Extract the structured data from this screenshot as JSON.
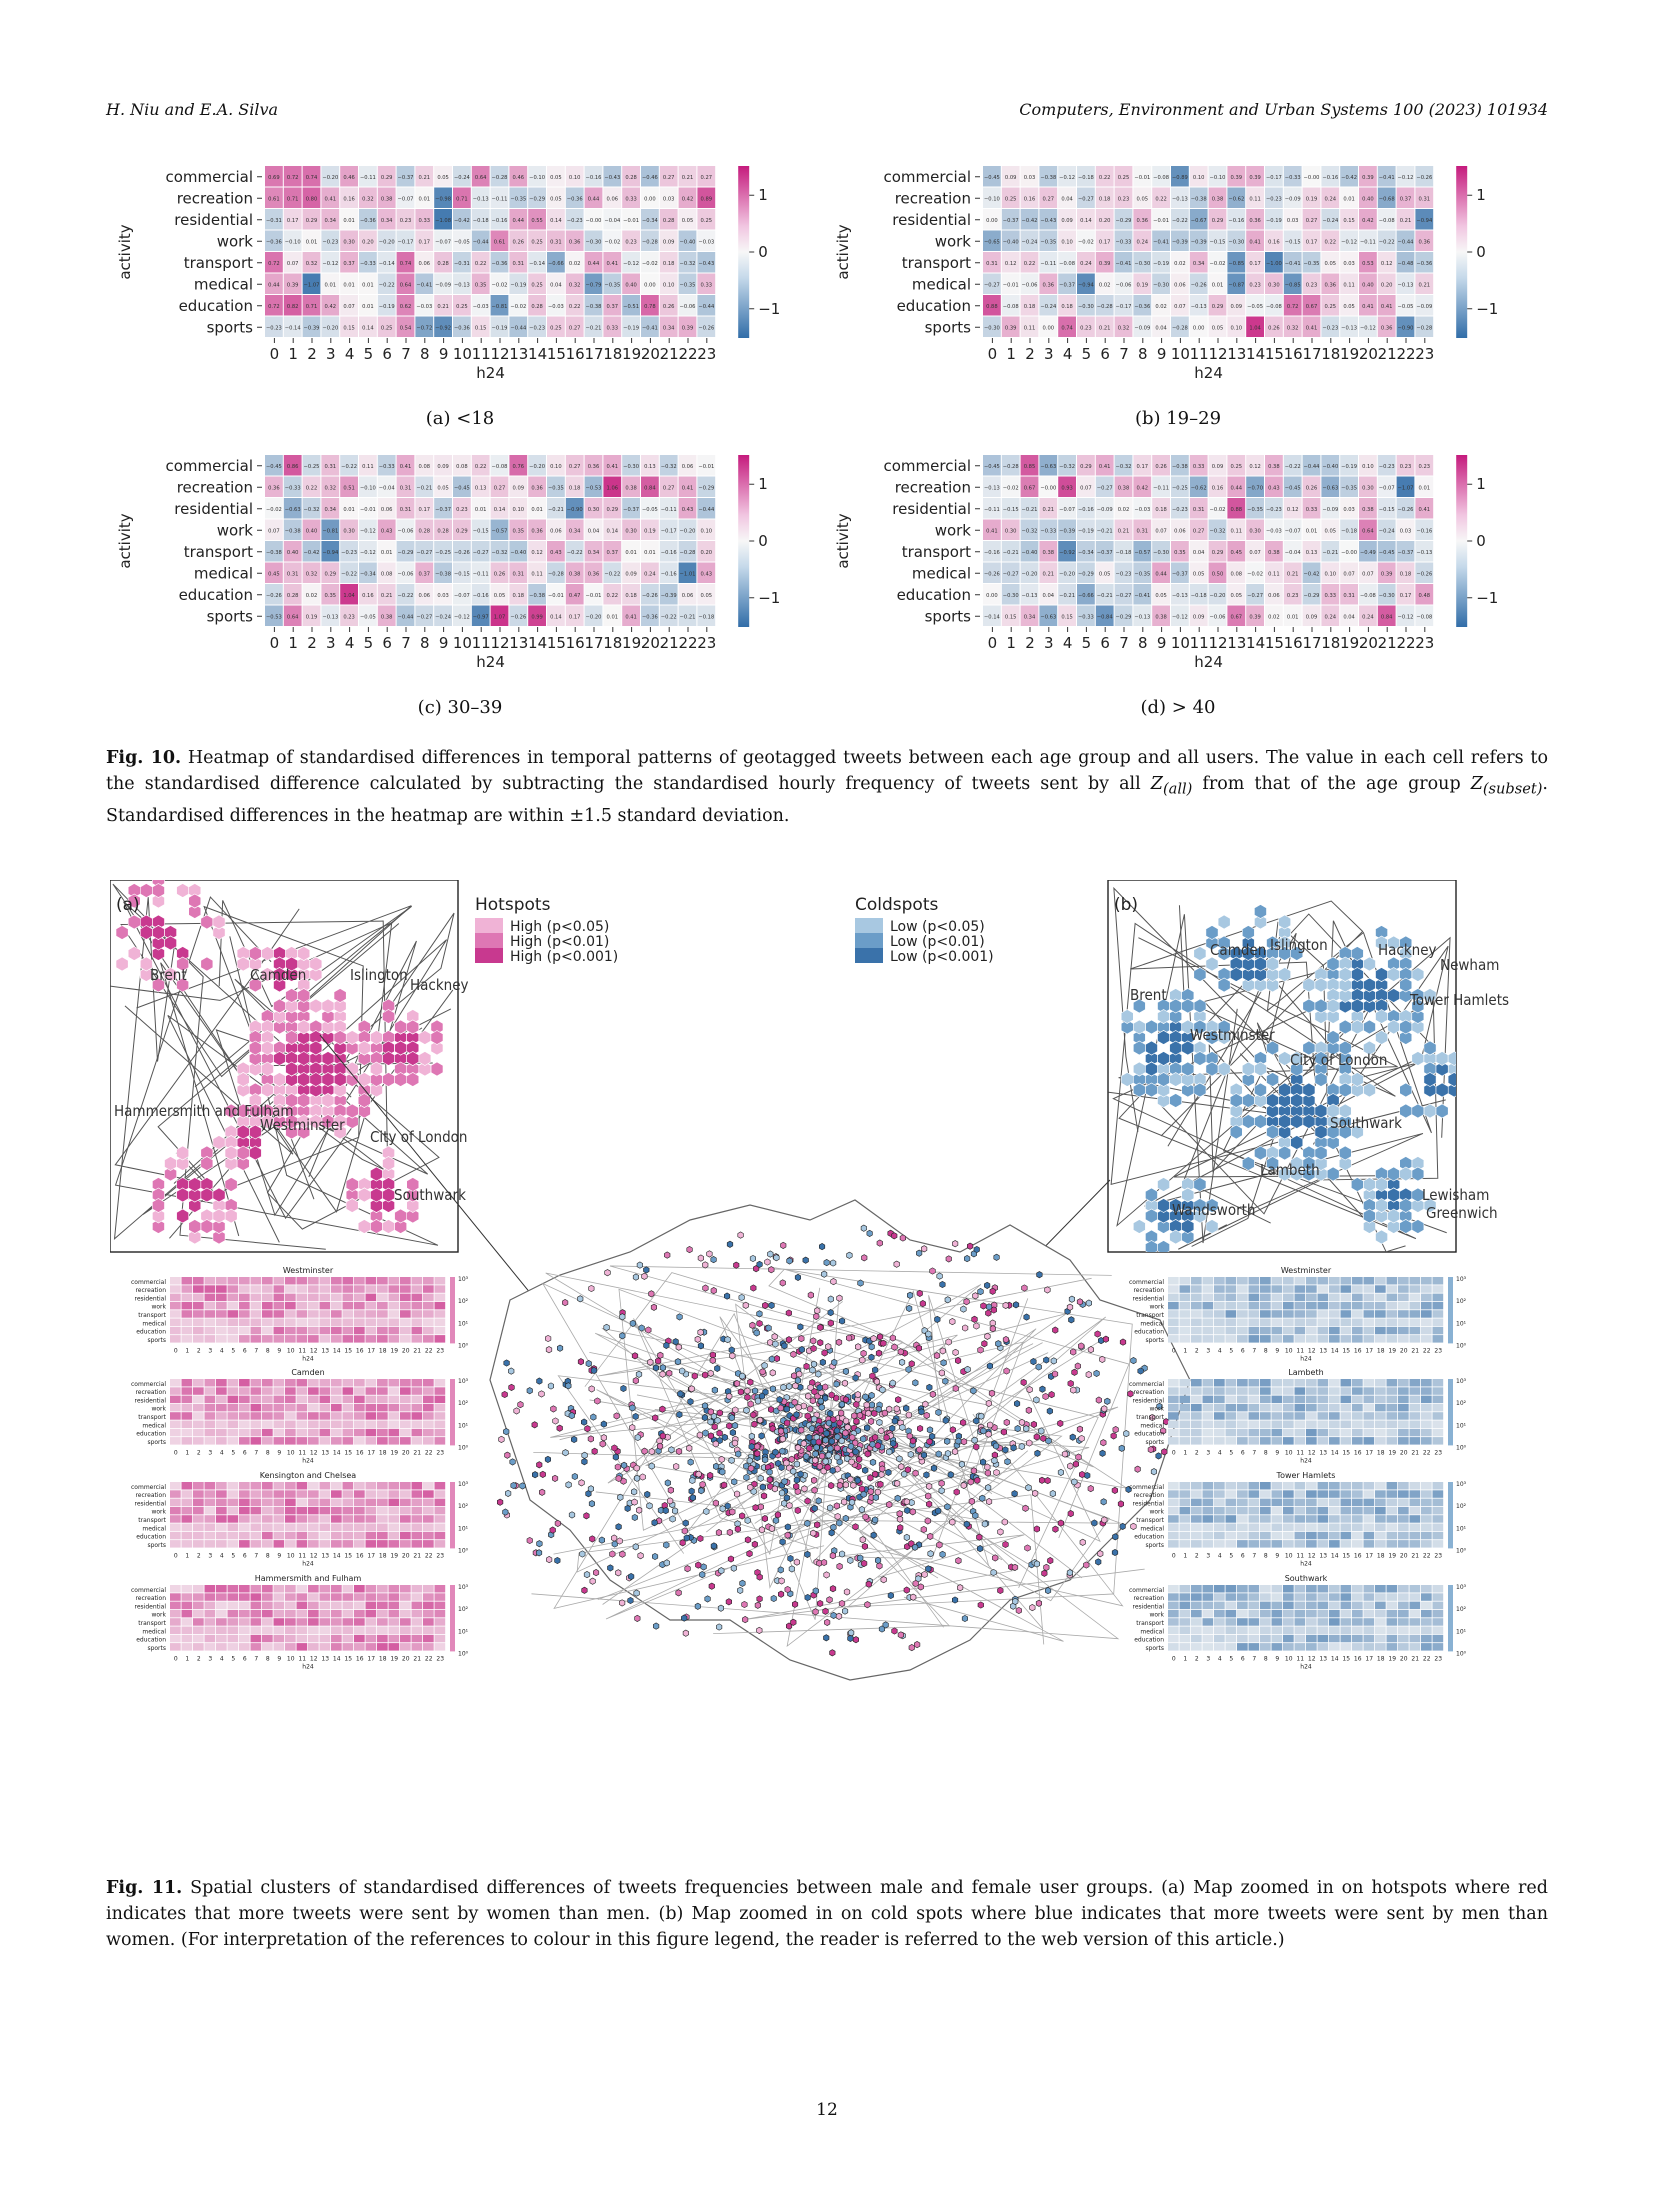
{
  "header": {
    "authors": "H. Niu and E.A. Silva",
    "journal": "Computers, Environment and Urban Systems 100 (2023) 101934"
  },
  "fig10": {
    "rows": [
      "commercial",
      "recreation",
      "residential",
      "work",
      "transport",
      "medical",
      "education",
      "sports"
    ],
    "ylabel": "activity",
    "xlabel": "h24",
    "hours": [
      "0",
      "1",
      "2",
      "3",
      "4",
      "5",
      "6",
      "7",
      "8",
      "9",
      "10",
      "11",
      "12",
      "13",
      "14",
      "15",
      "16",
      "17",
      "18",
      "19",
      "20",
      "21",
      "22",
      "23"
    ],
    "cbar_ticks": [
      "1",
      "0",
      "−1"
    ],
    "panels": [
      {
        "id": "a",
        "caption": "(a) <18"
      },
      {
        "id": "b",
        "caption": "(b) 19–29"
      },
      {
        "id": "c",
        "caption": "(c) 30–39"
      },
      {
        "id": "d",
        "caption": "(d) > 40"
      }
    ],
    "caption_label": "Fig. 10.",
    "caption_text_1": "Heatmap of standardised differences in temporal patterns of geotagged tweets between each age group and all users. The value in each cell refers to the standardised difference calculated by subtracting the standardised hourly frequency of tweets sent by all ",
    "caption_z_all": "Z",
    "caption_z_all_sub": "(all)",
    "caption_text_2": " from that of the age group ",
    "caption_z_subset": "Z",
    "caption_z_subset_sub": "(subset)",
    "caption_text_3": ". Standardised differences in the heatmap are within ±1.5 standard deviation."
  },
  "fig11": {
    "inset_a_label": "(a)",
    "inset_b_label": "(b)",
    "hotspots_title": "Hotspots",
    "hotspots_items": [
      "High (p<0.05)",
      "High (p<0.01)",
      "High (p<0.001)"
    ],
    "coldspots_title": "Coldspots",
    "coldspots_items": [
      "Low (p<0.05)",
      "Low (p<0.01)",
      "Low (p<0.001)"
    ],
    "map_a_labels": [
      "Brent",
      "Camden",
      "Islington",
      "Hackney",
      "Hammersmith and Fulham",
      "Westminster",
      "City of London",
      "Southwark"
    ],
    "map_b_labels": [
      "Camden",
      "Islington",
      "Hackney",
      "Newham",
      "Brent",
      "Tower Hamlets",
      "Westminster",
      "City of London",
      "Southwark",
      "Lambeth",
      "Wandsworth",
      "Lewisham",
      "Greenwich"
    ],
    "left_heatmaps": [
      "Westminster",
      "Camden",
      "Kensington and Chelsea",
      "Hammersmith and Fulham"
    ],
    "right_heatmaps": [
      "Westminster",
      "Lambeth",
      "Tower Hamlets",
      "Southwark"
    ],
    "cbar_ticks": [
      "10³",
      "10²",
      "10¹",
      "10⁰"
    ],
    "caption_label": "Fig. 11.",
    "caption_text": "Spatial clusters of standardised differences of tweets frequencies between male and female user groups. (a) Map zoomed in on hotspots where red indicates that more tweets were sent by women than men. (b) Map zoomed in on cold spots where blue indicates that more tweets were sent by men than women. (For interpretation of the references to colour in this figure legend, the reader is referred to the web version of this article.)"
  },
  "page_number": "12",
  "colors": {
    "pink": "#c51b7d",
    "pink_light": "#f1b6da",
    "blue": "#2166ac",
    "blue_light": "#92c5de"
  }
}
